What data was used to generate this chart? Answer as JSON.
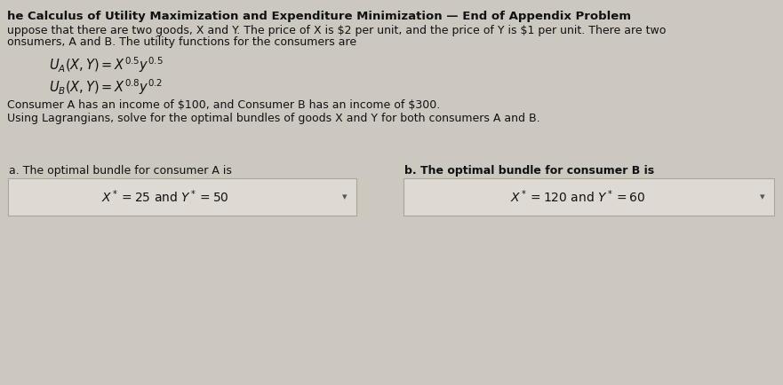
{
  "title": "he Calculus of Utility Maximization and Expenditure Minimization — End of Appendix Problem",
  "body_line1": "uppose that there are two goods, X and Y. The price of X is $2 per unit, and the price of Y is $1 per unit. There are two",
  "body_line2": "onsumers, A and B. The utility functions for the consumers are",
  "body_text_2": "Consumer A has an income of $100, and Consumer B has an income of $300.",
  "body_text_3": "Using Lagrangians, solve for the optimal bundles of goods X and Y for both consumers A and B.",
  "label_a": "a. The optimal bundle for consumer A is",
  "label_b": "b. The optimal bundle for consumer B is",
  "bg_color": "#ccc8c0",
  "box_color": "#dedad3",
  "box_border": "#aaa49a",
  "text_color": "#111111"
}
